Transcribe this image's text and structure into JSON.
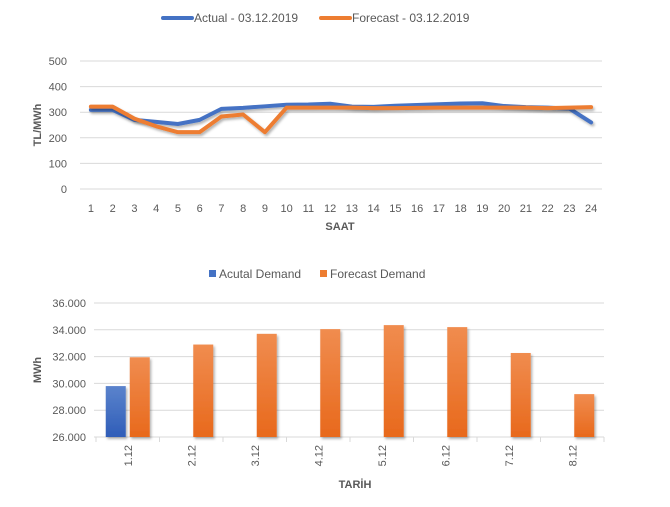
{
  "chart_data": [
    {
      "type": "line",
      "title": "",
      "xlabel": "SAAT",
      "ylabel": "TL/MWh",
      "ylim": [
        0,
        500
      ],
      "yticks": [
        "0",
        "100",
        "200",
        "300",
        "400",
        "500"
      ],
      "ytick_values": [
        0,
        100,
        200,
        300,
        400,
        500
      ],
      "grid": true,
      "legend_position": "top",
      "x": [
        "1",
        "2",
        "3",
        "4",
        "5",
        "6",
        "7",
        "8",
        "9",
        "10",
        "11",
        "12",
        "13",
        "14",
        "15",
        "16",
        "17",
        "18",
        "19",
        "20",
        "21",
        "22",
        "23",
        "24"
      ],
      "series": [
        {
          "name": "Actual - 03.12.2019",
          "color": "#4472C4",
          "values": [
            309,
            309,
            270,
            262,
            254,
            270,
            313,
            317,
            323,
            329,
            330,
            333,
            322,
            321,
            325,
            328,
            331,
            334,
            335,
            324,
            320,
            318,
            314,
            260
          ]
        },
        {
          "name": "Forecast - 03.12.2019",
          "color": "#ED7D31",
          "values": [
            322,
            322,
            275,
            245,
            222,
            222,
            283,
            291,
            222,
            318,
            318,
            318,
            318,
            316,
            316,
            317,
            318,
            318,
            318,
            318,
            318,
            316,
            318,
            320
          ]
        }
      ]
    },
    {
      "type": "bar",
      "title": "",
      "xlabel": "TARİH",
      "ylabel": "MWh",
      "ylim": [
        26000,
        36000
      ],
      "yticks": [
        "26.000",
        "28.000",
        "30.000",
        "32.000",
        "34.000",
        "36.000"
      ],
      "ytick_values": [
        26000,
        28000,
        30000,
        32000,
        34000,
        36000
      ],
      "grid": true,
      "legend_position": "top",
      "categories": [
        "1.12",
        "2.12",
        "3.12",
        "4.12",
        "5.12",
        "6.12",
        "7.12",
        "8.12"
      ],
      "series": [
        {
          "name": "Acutal Demand",
          "color": "#4472C4",
          "values": [
            29800,
            null,
            null,
            null,
            null,
            null,
            null,
            null
          ]
        },
        {
          "name": "Forecast Demand",
          "color": "#ED7D31",
          "values": [
            31950,
            32900,
            33700,
            34050,
            34350,
            34200,
            32270,
            29200
          ]
        }
      ]
    }
  ]
}
